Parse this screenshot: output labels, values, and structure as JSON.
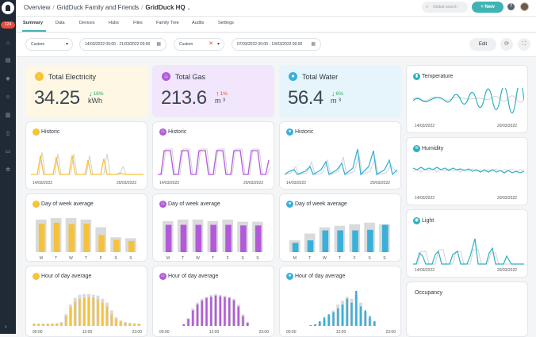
{
  "sidebar": {
    "badge": "124"
  },
  "breadcrumb": {
    "items": [
      "Overview",
      "GridDuck Family and Friends",
      "GridDuck HQ"
    ]
  },
  "header": {
    "search_placeholder": "Global search",
    "new_label": "+ New",
    "help": "?"
  },
  "tabs": [
    "Summary",
    "Data",
    "Devices",
    "Hubs",
    "Files",
    "Family Tree",
    "Audits",
    "Settings"
  ],
  "filters": {
    "period1": "Custom",
    "range1": "14/03/2022 00:00 - 21/03/2022 00:00",
    "period2": "Custom",
    "range2": "07/03/2022 00:00 - 14/03/2022 00:00",
    "edit": "Edit"
  },
  "colors": {
    "electricity": "#f5c33b",
    "gas": "#b35ad9",
    "water": "#3ab0d9",
    "env": "#2bb0c2",
    "neutral": "#d9dadc"
  },
  "summary": [
    {
      "title": "Total Electricity",
      "value": "34.25",
      "unit": "kWh",
      "delta": "16%",
      "delta_dir": "down"
    },
    {
      "title": "Total Gas",
      "value": "213.6",
      "unit": "m ³",
      "delta": "1%",
      "delta_dir": "up"
    },
    {
      "title": "Total Water",
      "value": "56.4",
      "unit": "m ³",
      "delta": "6%",
      "delta_dir": "down"
    }
  ],
  "historic": {
    "title": "Historic",
    "start": "14/03/2022",
    "end": "20/03/2022"
  },
  "dow": {
    "title": "Day of week average",
    "days": [
      "M",
      "T",
      "W",
      "T",
      "F",
      "S",
      "S"
    ]
  },
  "hod": {
    "title": "Hour of day average",
    "ticks": [
      "00:00",
      "12:00",
      "23:00"
    ]
  },
  "environment": [
    {
      "title": "Temperature",
      "start": "14/03/2022",
      "end": "20/03/2022"
    },
    {
      "title": "Humidity",
      "start": "14/03/2022",
      "end": "20/03/2022"
    },
    {
      "title": "Light",
      "start": "14/03/2022",
      "end": "20/03/2022"
    },
    {
      "title": "Occupancy"
    }
  ],
  "chart_data": [
    {
      "id": "elec_dow",
      "type": "bar",
      "title": "Day of week average",
      "categories": [
        "M",
        "T",
        "W",
        "T",
        "F",
        "S",
        "S"
      ],
      "series": [
        {
          "name": "previous",
          "values": [
            1.05,
            1.1,
            1.1,
            1.05,
            0.8,
            0.48,
            0.45
          ]
        },
        {
          "name": "current",
          "values": [
            0.92,
            0.95,
            0.9,
            0.92,
            0.55,
            0.4,
            0.36
          ]
        }
      ],
      "ylim": [
        0,
        1.2
      ]
    },
    {
      "id": "gas_dow",
      "type": "bar",
      "title": "Day of week average",
      "categories": [
        "M",
        "T",
        "W",
        "T",
        "F",
        "S",
        "S"
      ],
      "series": [
        {
          "name": "previous",
          "values": [
            1.0,
            1.05,
            1.05,
            1.0,
            1.05,
            0.98,
            0.98
          ]
        },
        {
          "name": "current",
          "values": [
            0.88,
            0.88,
            0.88,
            0.88,
            0.88,
            0.86,
            0.86
          ]
        }
      ],
      "ylim": [
        0,
        1.2
      ]
    },
    {
      "id": "water_dow",
      "type": "bar",
      "title": "Day of week average",
      "categories": [
        "M",
        "T",
        "W",
        "T",
        "F",
        "S",
        "S"
      ],
      "series": [
        {
          "name": "previous",
          "values": [
            0.38,
            0.6,
            0.8,
            0.85,
            0.9,
            0.95,
            0.9
          ]
        },
        {
          "name": "current",
          "values": [
            0.3,
            0.38,
            0.7,
            0.7,
            0.7,
            0.72,
            0.88
          ]
        }
      ],
      "ylim": [
        0,
        1.2
      ]
    },
    {
      "id": "elec_hod",
      "type": "bar",
      "title": "Hour of day average",
      "categories": [
        "00",
        "01",
        "02",
        "03",
        "04",
        "05",
        "06",
        "07",
        "08",
        "09",
        "10",
        "11",
        "12",
        "13",
        "14",
        "15",
        "16",
        "17",
        "18",
        "19",
        "20",
        "21",
        "22",
        "23"
      ],
      "series": [
        {
          "name": "previous",
          "values": [
            0.06,
            0.06,
            0.06,
            0.06,
            0.06,
            0.07,
            0.1,
            0.3,
            0.55,
            0.72,
            0.8,
            0.82,
            0.82,
            0.8,
            0.78,
            0.7,
            0.6,
            0.4,
            0.22,
            0.14,
            0.1,
            0.08,
            0.07,
            0.06
          ]
        },
        {
          "name": "current",
          "values": [
            0.05,
            0.05,
            0.05,
            0.05,
            0.05,
            0.06,
            0.08,
            0.25,
            0.48,
            0.62,
            0.7,
            0.72,
            0.74,
            0.72,
            0.68,
            0.6,
            0.5,
            0.3,
            0.18,
            0.12,
            0.08,
            0.06,
            0.05,
            0.05
          ]
        }
      ],
      "ylim": [
        0,
        1
      ]
    },
    {
      "id": "gas_hod",
      "type": "bar",
      "title": "Hour of day average",
      "categories": [
        "00",
        "01",
        "02",
        "03",
        "04",
        "05",
        "06",
        "07",
        "08",
        "09",
        "10",
        "11",
        "12",
        "13",
        "14",
        "15",
        "16",
        "17",
        "18",
        "19",
        "20",
        "21",
        "22",
        "23"
      ],
      "series": [
        {
          "name": "previous",
          "values": [
            0,
            0,
            0,
            0,
            0,
            0.05,
            0.2,
            0.45,
            0.6,
            0.7,
            0.75,
            0.8,
            0.82,
            0.8,
            0.78,
            0.75,
            0.7,
            0.55,
            0.3,
            0.1,
            0,
            0,
            0,
            0
          ]
        },
        {
          "name": "current",
          "values": [
            0,
            0,
            0,
            0,
            0,
            0.04,
            0.18,
            0.4,
            0.55,
            0.65,
            0.72,
            0.75,
            0.78,
            0.76,
            0.74,
            0.72,
            0.66,
            0.5,
            0.25,
            0.08,
            0,
            0,
            0,
            0
          ]
        }
      ],
      "ylim": [
        0,
        1
      ]
    },
    {
      "id": "water_hod",
      "type": "bar",
      "title": "Hour of day average",
      "categories": [
        "00",
        "01",
        "02",
        "03",
        "04",
        "05",
        "06",
        "07",
        "08",
        "09",
        "10",
        "11",
        "12",
        "13",
        "14",
        "15",
        "16",
        "17",
        "18",
        "19",
        "20",
        "21",
        "22",
        "23"
      ],
      "series": [
        {
          "name": "previous",
          "values": [
            0,
            0,
            0,
            0,
            0,
            0.02,
            0.05,
            0.1,
            0.15,
            0.25,
            0.4,
            0.55,
            0.65,
            0.75,
            0.7,
            0.8,
            0.6,
            0.35,
            0.2,
            0.1,
            0,
            0,
            0,
            0
          ]
        },
        {
          "name": "current",
          "values": [
            0,
            0,
            0,
            0,
            0,
            0.02,
            0.04,
            0.12,
            0.22,
            0.3,
            0.35,
            0.45,
            0.55,
            0.7,
            0.6,
            0.9,
            0.5,
            0.4,
            0.25,
            0.12,
            0,
            0,
            0,
            0
          ]
        }
      ],
      "ylim": [
        0,
        1
      ]
    }
  ]
}
